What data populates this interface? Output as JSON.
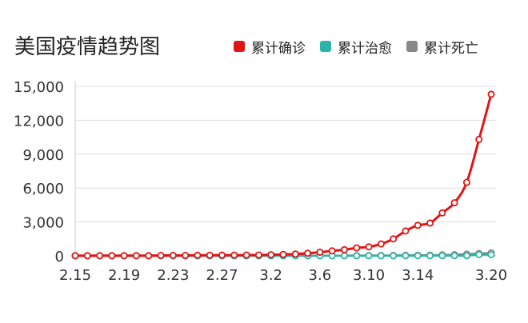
{
  "chart_data": {
    "type": "line",
    "title": "美国疫情趋势图",
    "xlabel": "",
    "ylabel": "",
    "ylim": [
      0,
      15000
    ],
    "yticks": [
      "0",
      "3,000",
      "6,000",
      "9,000",
      "12,000",
      "15,000"
    ],
    "ytick_values": [
      0,
      3000,
      6000,
      9000,
      12000,
      15000
    ],
    "xtick_labels": [
      "2.15",
      "2.19",
      "2.23",
      "2.27",
      "3.2",
      "3.6",
      "3.10",
      "3.14",
      "3.20"
    ],
    "xtick_indices": [
      0,
      4,
      8,
      12,
      16,
      20,
      24,
      28,
      34
    ],
    "categories": [
      "2.15",
      "2.16",
      "2.17",
      "2.18",
      "2.19",
      "2.20",
      "2.21",
      "2.22",
      "2.23",
      "2.24",
      "2.25",
      "2.26",
      "2.27",
      "2.28",
      "2.29",
      "3.1",
      "3.2",
      "3.3",
      "3.4",
      "3.5",
      "3.6",
      "3.7",
      "3.8",
      "3.9",
      "3.10",
      "3.11",
      "3.12",
      "3.13",
      "3.14",
      "3.15",
      "3.16",
      "3.17",
      "3.18",
      "3.19",
      "3.20"
    ],
    "grid": true,
    "legend_position": "top-right",
    "series": [
      {
        "name": "累计确诊",
        "color": "#e01515",
        "values": [
          15,
          15,
          15,
          15,
          15,
          15,
          15,
          35,
          35,
          35,
          53,
          57,
          60,
          62,
          70,
          75,
          100,
          125,
          160,
          230,
          320,
          440,
          540,
          700,
          800,
          1050,
          1500,
          2200,
          2700,
          2900,
          3800,
          4700,
          6500,
          10300,
          14300
        ]
      },
      {
        "name": "累计治愈",
        "color": "#2bb5a8",
        "values": [
          3,
          3,
          3,
          3,
          3,
          3,
          3,
          5,
          5,
          5,
          6,
          6,
          6,
          6,
          7,
          7,
          7,
          7,
          8,
          8,
          8,
          8,
          8,
          8,
          8,
          8,
          8,
          12,
          12,
          12,
          17,
          17,
          17,
          106,
          108
        ]
      },
      {
        "name": "累计死亡",
        "color": "#888888",
        "values": [
          0,
          0,
          0,
          0,
          0,
          0,
          0,
          0,
          0,
          0,
          0,
          0,
          0,
          0,
          1,
          1,
          6,
          9,
          11,
          12,
          15,
          19,
          22,
          26,
          30,
          38,
          41,
          49,
          57,
          60,
          85,
          108,
          150,
          208,
          260
        ]
      }
    ]
  }
}
